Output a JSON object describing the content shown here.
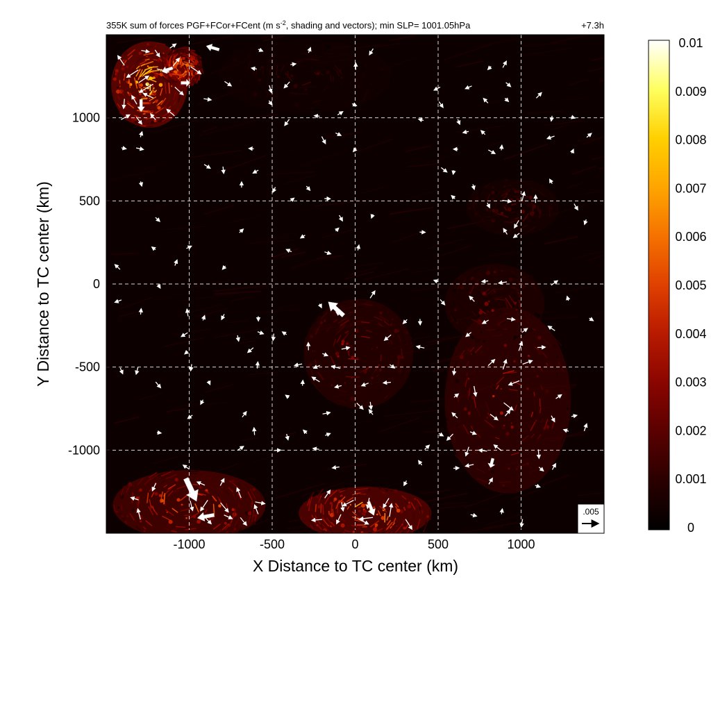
{
  "chart_data": {
    "type": "heatmap",
    "title_prefix": "355K sum of forces PGF+FCor+FCent (m s",
    "title_sup": "-2",
    "title_suffix": ", shading and vectors); min SLP= 1001.05hPa",
    "time_label": "+7.3h",
    "xlabel": "X Distance to TC center (km)",
    "ylabel": "Y Distance to TC center (km)",
    "xlim": [
      -1500,
      1500
    ],
    "ylim": [
      -1500,
      1500
    ],
    "xticks": [
      -1000,
      -500,
      0,
      500,
      1000
    ],
    "yticks": [
      1000,
      500,
      0,
      -500,
      -1000
    ],
    "grid": true,
    "colorbar": {
      "min": 0,
      "max": 0.01,
      "ticks": [
        "0.01",
        "0.009",
        "0.008",
        "0.007",
        "0.006",
        "0.005",
        "0.004",
        "0.003",
        "0.002",
        "0.001",
        "0"
      ],
      "colors": [
        "#000000",
        "#2a0000",
        "#5a0000",
        "#8a0500",
        "#b81a00",
        "#e04000",
        "#f57200",
        "#ffa500",
        "#ffd000",
        "#ffff60",
        "#ffffff"
      ]
    },
    "reference_vector": {
      "label": ".005",
      "value": 0.005
    },
    "min_slp_hpa": 1001.05,
    "vectors_large": [
      {
        "x": -1020,
        "y": -1170,
        "u": 0.0035,
        "v": -0.0075
      },
      {
        "x": -850,
        "y": -1390,
        "u": -0.0055,
        "v": -0.001
      },
      {
        "x": -70,
        "y": -190,
        "u": -0.005,
        "v": 0.0045
      },
      {
        "x": 80,
        "y": -1310,
        "u": 0.0018,
        "v": -0.0045
      },
      {
        "x": -1290,
        "y": 1110,
        "u": 0.0,
        "v": -0.004
      },
      {
        "x": -820,
        "y": 1410,
        "u": -0.0042,
        "v": 0.0012
      },
      {
        "x": 830,
        "y": -1050,
        "u": -0.0008,
        "v": -0.003
      },
      {
        "x": -1100,
        "y": 1300,
        "u": -0.0035,
        "v": -0.0012
      },
      {
        "x": -1050,
        "y": 1210,
        "u": 0.003,
        "v": 0.0
      }
    ],
    "hot_regions": [
      {
        "x": -1240,
        "y": 1200,
        "rx": 230,
        "ry": 260,
        "intensity": 0.007
      },
      {
        "x": -1040,
        "y": 1300,
        "rx": 120,
        "ry": 120,
        "intensity": 0.0055
      },
      {
        "x": 20,
        "y": -420,
        "rx": 330,
        "ry": 330,
        "intensity": 0.0028
      },
      {
        "x": 920,
        "y": -700,
        "rx": 380,
        "ry": 560,
        "intensity": 0.0034
      },
      {
        "x": 840,
        "y": -120,
        "rx": 300,
        "ry": 240,
        "intensity": 0.0022
      },
      {
        "x": 60,
        "y": -1380,
        "rx": 400,
        "ry": 160,
        "intensity": 0.006
      },
      {
        "x": -1000,
        "y": -1330,
        "rx": 460,
        "ry": 210,
        "intensity": 0.005
      },
      {
        "x": 950,
        "y": 460,
        "rx": 280,
        "ry": 170,
        "intensity": 0.0016
      },
      {
        "x": -300,
        "y": 1250,
        "rx": 520,
        "ry": 220,
        "intensity": 0.0011
      }
    ]
  }
}
